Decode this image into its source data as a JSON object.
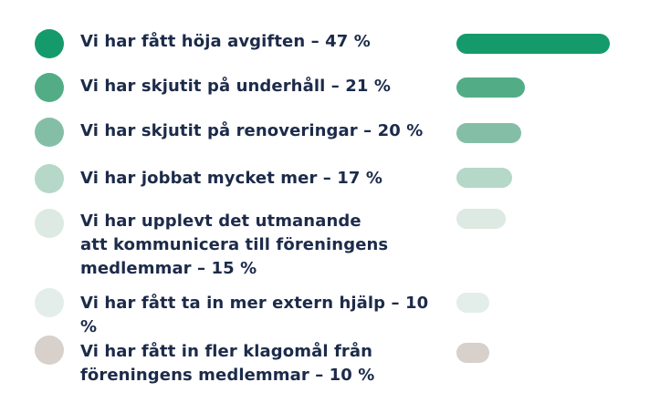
{
  "chart_data": {
    "type": "bar",
    "orientation": "horizontal",
    "unit": "%",
    "xlim": [
      0,
      47
    ],
    "items": [
      {
        "label": "Vi har fått höja avgiften – 47 %",
        "value": 47,
        "color": "#159a6c"
      },
      {
        "label": "Vi har skjutit på underhåll – 21 %",
        "value": 21,
        "color": "#52ad87"
      },
      {
        "label": "Vi har skjutit på renoveringar – 20 %",
        "value": 20,
        "color": "#85bea6"
      },
      {
        "label": "Vi har jobbat mycket mer – 17 %",
        "value": 17,
        "color": "#b5d8c8"
      },
      {
        "label": "Vi har upplevt det utmanande\natt kommunicera till föreningens\nmedlemmar – 15 %",
        "value": 15,
        "color": "#dde9e3"
      },
      {
        "label": "Vi har fått ta in mer extern hjälp – 10 %",
        "value": 10,
        "color": "#e3eeea"
      },
      {
        "label": "Vi har fått in fler klagomål från\nföreningens medlemmar – 10 %",
        "value": 10,
        "color": "#d7d0cb"
      }
    ]
  }
}
